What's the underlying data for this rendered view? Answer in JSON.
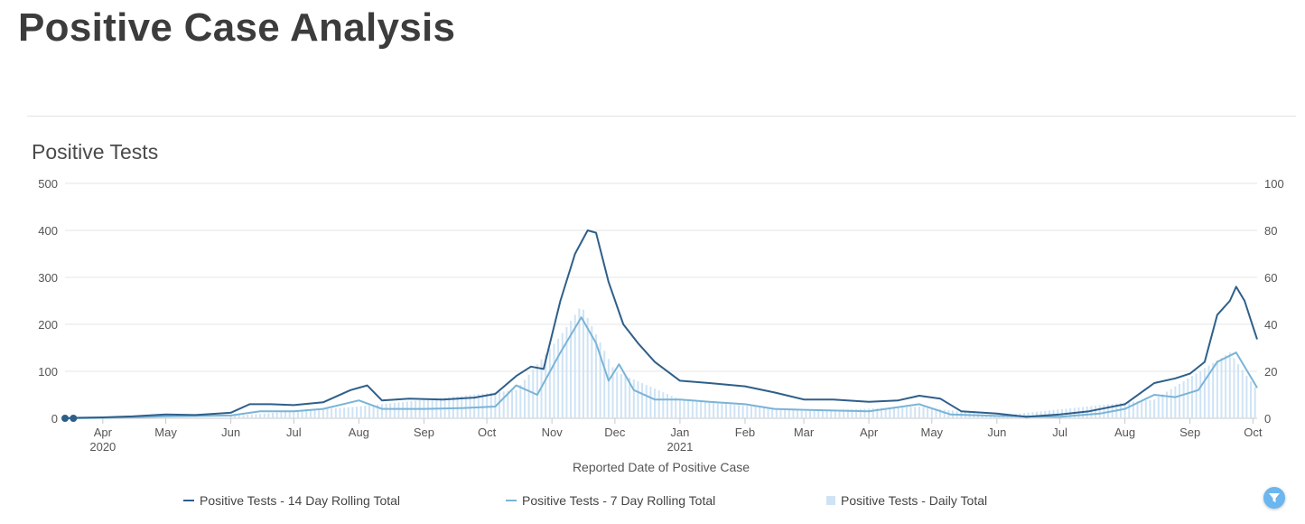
{
  "page": {
    "title": "Positive Case Analysis"
  },
  "chart_data": {
    "type": "line",
    "title": "Positive Tests",
    "xlabel": "Reported Date of Positive Case",
    "ylabel_left": "",
    "ylabel_right": "",
    "ylim_left": [
      0,
      500
    ],
    "ylim_right": [
      0,
      100
    ],
    "y_ticks_left": [
      "0",
      "100",
      "200",
      "300",
      "400",
      "500"
    ],
    "y_ticks_right": [
      "0",
      "20",
      "40",
      "60",
      "80",
      "100"
    ],
    "x_ticks": [
      {
        "date": "2020-04-01",
        "label": "Apr",
        "sub": "2020"
      },
      {
        "date": "2020-05-01",
        "label": "May",
        "sub": ""
      },
      {
        "date": "2020-06-01",
        "label": "Jun",
        "sub": ""
      },
      {
        "date": "2020-07-01",
        "label": "Jul",
        "sub": ""
      },
      {
        "date": "2020-08-01",
        "label": "Aug",
        "sub": ""
      },
      {
        "date": "2020-09-01",
        "label": "Sep",
        "sub": ""
      },
      {
        "date": "2020-10-01",
        "label": "Oct",
        "sub": ""
      },
      {
        "date": "2020-11-01",
        "label": "Nov",
        "sub": ""
      },
      {
        "date": "2020-12-01",
        "label": "Dec",
        "sub": ""
      },
      {
        "date": "2021-01-01",
        "label": "Jan",
        "sub": "2021"
      },
      {
        "date": "2021-02-01",
        "label": "Feb",
        "sub": ""
      },
      {
        "date": "2021-03-01",
        "label": "Mar",
        "sub": ""
      },
      {
        "date": "2021-04-01",
        "label": "Apr",
        "sub": ""
      },
      {
        "date": "2021-05-01",
        "label": "May",
        "sub": ""
      },
      {
        "date": "2021-06-01",
        "label": "Jun",
        "sub": ""
      },
      {
        "date": "2021-07-01",
        "label": "Jul",
        "sub": ""
      },
      {
        "date": "2021-08-01",
        "label": "Aug",
        "sub": ""
      },
      {
        "date": "2021-09-01",
        "label": "Sep",
        "sub": ""
      },
      {
        "date": "2021-10-01",
        "label": "Oct",
        "sub": ""
      }
    ],
    "x_range": [
      "2020-03-14",
      "2021-10-03"
    ],
    "grid": true,
    "legend_position": "bottom",
    "series": [
      {
        "name": "Positive Tests - 14 Day Rolling Total",
        "axis": "left",
        "color": "#2e5f8a",
        "points": [
          [
            "2020-03-14",
            0
          ],
          [
            "2020-03-18",
            1
          ],
          [
            "2020-04-01",
            2
          ],
          [
            "2020-04-15",
            4
          ],
          [
            "2020-05-01",
            8
          ],
          [
            "2020-05-15",
            7
          ],
          [
            "2020-06-01",
            12
          ],
          [
            "2020-06-10",
            30
          ],
          [
            "2020-06-20",
            30
          ],
          [
            "2020-07-01",
            28
          ],
          [
            "2020-07-15",
            34
          ],
          [
            "2020-07-28",
            60
          ],
          [
            "2020-08-05",
            70
          ],
          [
            "2020-08-12",
            38
          ],
          [
            "2020-08-25",
            42
          ],
          [
            "2020-09-10",
            40
          ],
          [
            "2020-09-25",
            44
          ],
          [
            "2020-10-05",
            52
          ],
          [
            "2020-10-15",
            90
          ],
          [
            "2020-10-22",
            110
          ],
          [
            "2020-10-28",
            105
          ],
          [
            "2020-11-05",
            250
          ],
          [
            "2020-11-12",
            350
          ],
          [
            "2020-11-18",
            400
          ],
          [
            "2020-11-22",
            395
          ],
          [
            "2020-11-28",
            290
          ],
          [
            "2020-12-05",
            200
          ],
          [
            "2020-12-12",
            160
          ],
          [
            "2020-12-20",
            120
          ],
          [
            "2021-01-01",
            80
          ],
          [
            "2021-01-15",
            75
          ],
          [
            "2021-02-01",
            68
          ],
          [
            "2021-02-15",
            55
          ],
          [
            "2021-03-01",
            40
          ],
          [
            "2021-03-15",
            40
          ],
          [
            "2021-04-01",
            35
          ],
          [
            "2021-04-15",
            38
          ],
          [
            "2021-04-25",
            48
          ],
          [
            "2021-05-05",
            42
          ],
          [
            "2021-05-15",
            15
          ],
          [
            "2021-06-01",
            10
          ],
          [
            "2021-06-15",
            3
          ],
          [
            "2021-07-01",
            8
          ],
          [
            "2021-07-15",
            15
          ],
          [
            "2021-08-01",
            30
          ],
          [
            "2021-08-15",
            75
          ],
          [
            "2021-08-25",
            85
          ],
          [
            "2021-09-01",
            95
          ],
          [
            "2021-09-08",
            120
          ],
          [
            "2021-09-14",
            220
          ],
          [
            "2021-09-20",
            250
          ],
          [
            "2021-09-23",
            280
          ],
          [
            "2021-09-27",
            250
          ],
          [
            "2021-10-01",
            195
          ],
          [
            "2021-10-03",
            168
          ]
        ]
      },
      {
        "name": "Positive Tests - 7 Day Rolling Total",
        "axis": "left",
        "color": "#7ab4d6",
        "points": [
          [
            "2020-03-14",
            0
          ],
          [
            "2020-04-01",
            1
          ],
          [
            "2020-05-01",
            4
          ],
          [
            "2020-06-01",
            6
          ],
          [
            "2020-06-15",
            15
          ],
          [
            "2020-07-01",
            15
          ],
          [
            "2020-07-15",
            20
          ],
          [
            "2020-08-01",
            38
          ],
          [
            "2020-08-12",
            20
          ],
          [
            "2020-09-01",
            20
          ],
          [
            "2020-09-20",
            22
          ],
          [
            "2020-10-05",
            25
          ],
          [
            "2020-10-15",
            70
          ],
          [
            "2020-10-25",
            50
          ],
          [
            "2020-11-05",
            140
          ],
          [
            "2020-11-15",
            215
          ],
          [
            "2020-11-22",
            160
          ],
          [
            "2020-11-28",
            80
          ],
          [
            "2020-12-03",
            115
          ],
          [
            "2020-12-10",
            60
          ],
          [
            "2020-12-20",
            40
          ],
          [
            "2021-01-01",
            40
          ],
          [
            "2021-01-15",
            35
          ],
          [
            "2021-02-01",
            30
          ],
          [
            "2021-02-15",
            20
          ],
          [
            "2021-03-01",
            18
          ],
          [
            "2021-04-01",
            15
          ],
          [
            "2021-04-25",
            30
          ],
          [
            "2021-05-10",
            8
          ],
          [
            "2021-06-01",
            5
          ],
          [
            "2021-07-01",
            3
          ],
          [
            "2021-07-20",
            10
          ],
          [
            "2021-08-01",
            20
          ],
          [
            "2021-08-15",
            50
          ],
          [
            "2021-08-25",
            45
          ],
          [
            "2021-09-05",
            60
          ],
          [
            "2021-09-14",
            120
          ],
          [
            "2021-09-23",
            140
          ],
          [
            "2021-10-01",
            80
          ],
          [
            "2021-10-03",
            65
          ]
        ]
      },
      {
        "name": "Positive Tests - Daily Total",
        "axis": "right",
        "color": "#cfe3f5",
        "points": [
          [
            "2020-06-01",
            1
          ],
          [
            "2020-08-01",
            5
          ],
          [
            "2020-10-15",
            12
          ],
          [
            "2020-11-05",
            35
          ],
          [
            "2020-11-15",
            48
          ],
          [
            "2020-12-01",
            20
          ],
          [
            "2021-01-01",
            8
          ],
          [
            "2021-03-01",
            3
          ],
          [
            "2021-04-25",
            5
          ],
          [
            "2021-06-01",
            1
          ],
          [
            "2021-08-15",
            8
          ],
          [
            "2021-09-20",
            28
          ],
          [
            "2021-10-03",
            12
          ]
        ]
      }
    ],
    "missing_points": [
      "2020-03-14",
      "2020-03-18"
    ]
  }
}
